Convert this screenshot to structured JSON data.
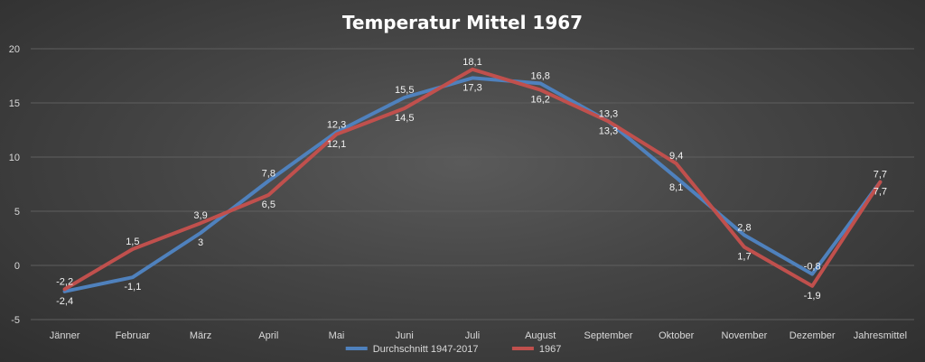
{
  "chart_data": {
    "type": "line",
    "title": "Temperatur Mittel 1967",
    "categories": [
      "Jänner",
      "Februar",
      "März",
      "April",
      "Mai",
      "Juni",
      "Juli",
      "August",
      "September",
      "Oktober",
      "November",
      "Dezember",
      "Jahresmittel"
    ],
    "ylim": [
      -5,
      20
    ],
    "yticks": [
      -5,
      0,
      5,
      10,
      15,
      20
    ],
    "grid": true,
    "legend": "bottom",
    "series": [
      {
        "name": "Durchschnitt 1947-2017",
        "color": "#4f81bd",
        "values": [
          -2.4,
          -1.1,
          3,
          7.8,
          12.3,
          15.5,
          17.3,
          16.8,
          13.3,
          8.1,
          2.8,
          -0.8,
          7.7
        ],
        "labels": [
          "-2,4",
          "-1,1",
          "3",
          "7,8",
          "12,3",
          "15,5",
          "17,3",
          "16,8",
          "13,3",
          "8,1",
          "2,8",
          "-0,8",
          "7,7"
        ]
      },
      {
        "name": "1967",
        "color": "#c0504d",
        "values": [
          -2.2,
          1.5,
          3.9,
          6.5,
          12.1,
          14.5,
          18.1,
          16.2,
          13.3,
          9.4,
          1.7,
          -1.9,
          7.7
        ],
        "labels": [
          "-2,2",
          "1,5",
          "3,9",
          "6,5",
          "12,1",
          "14,5",
          "18,1",
          "16,2",
          "13,3",
          "9,4",
          "1,7",
          "-1,9",
          "7,7"
        ]
      }
    ]
  }
}
